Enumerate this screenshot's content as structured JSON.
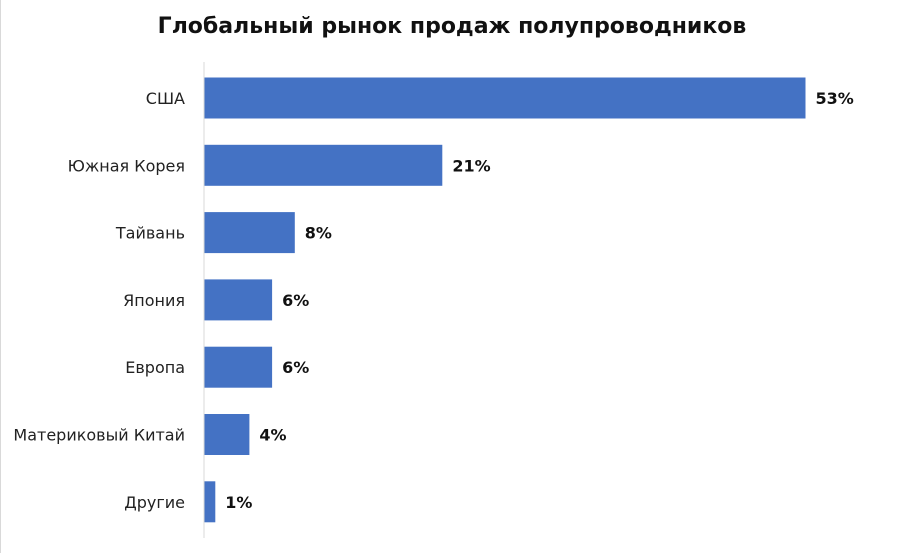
{
  "chart_data": {
    "type": "bar",
    "orientation": "horizontal",
    "title": "Глобальный рынок продаж полупроводников",
    "categories": [
      "США",
      "Южная Корея",
      "Тайвань",
      "Япония",
      "Европа",
      "Материковый Китай",
      "Другие"
    ],
    "values": [
      53,
      21,
      8,
      6,
      6,
      4,
      1
    ],
    "value_labels": [
      "53%",
      "21%",
      "8%",
      "6%",
      "6%",
      "4%",
      "1%"
    ],
    "unit": "%",
    "xlim": [
      0,
      60
    ],
    "grid": false,
    "legend": "none",
    "bar_color": "#4472C4"
  }
}
